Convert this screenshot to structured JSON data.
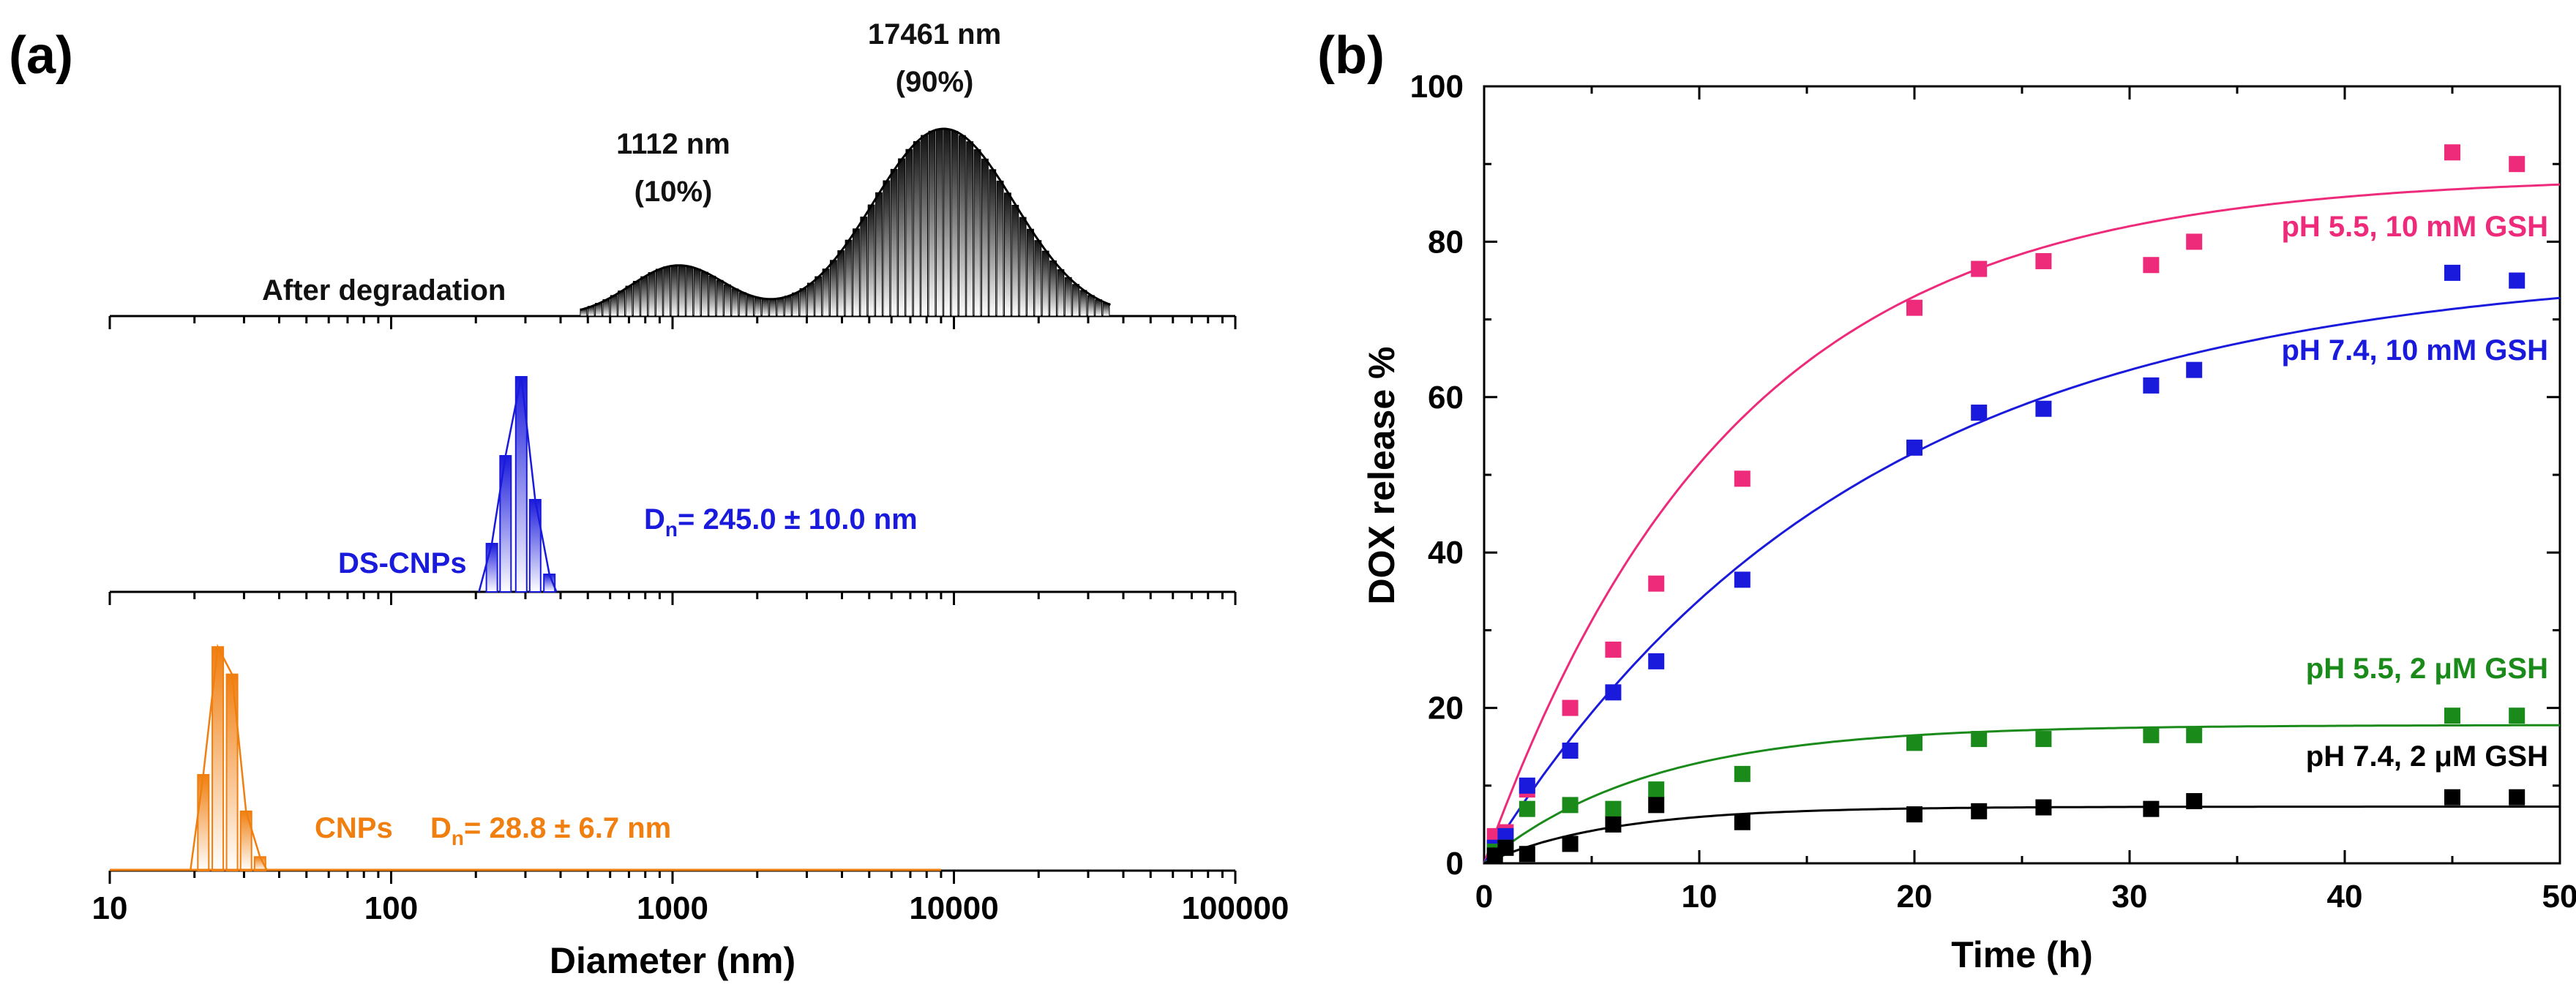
{
  "chart_data": [
    {
      "panel": "(a)",
      "type": "bar",
      "xscale": "log",
      "xlim": [
        10,
        100000
      ],
      "xticks": [
        "10",
        "100",
        "1000",
        "10000",
        "100000"
      ],
      "xlabel": "Diameter (nm)",
      "series": [
        {
          "name": "After degradation",
          "label": "After degradation",
          "color": "#111111",
          "peaks": [
            {
              "label_value": "1112 nm",
              "label_pct": "(10%)",
              "mu": 1050,
              "sigma_log10": 0.17,
              "height": 0.27
            },
            {
              "label_value": "17461 nm",
              "label_pct": "(90%)",
              "mu": 9200,
              "sigma_log10": 0.25,
              "height": 1.0
            }
          ],
          "range": [
            470,
            36000
          ]
        },
        {
          "name": "DS-CNPs",
          "label": "DS-CNPs",
          "stat_prefix": "D",
          "stat_sub": "n",
          "stat_value": "= 245.0 ± 10.0 nm",
          "color": "#1a1adc",
          "bins": [
            {
              "x": 228,
              "v": 0.22
            },
            {
              "x": 255,
              "v": 0.62
            },
            {
              "x": 290,
              "v": 0.98
            },
            {
              "x": 325,
              "v": 0.42
            },
            {
              "x": 365,
              "v": 0.08
            }
          ]
        },
        {
          "name": "CNPs",
          "label": "CNPs",
          "stat_prefix": "D",
          "stat_sub": "n",
          "stat_value": "= 28.8 ± 6.7 nm",
          "color": "#f07f10",
          "bins": [
            {
              "x": 21.5,
              "v": 0.42
            },
            {
              "x": 24.2,
              "v": 0.98
            },
            {
              "x": 27.2,
              "v": 0.86
            },
            {
              "x": 30.5,
              "v": 0.26
            },
            {
              "x": 34.2,
              "v": 0.06
            }
          ]
        }
      ]
    },
    {
      "panel": "(b)",
      "type": "scatter",
      "xlabel": "Time (h)",
      "ylabel": "DOX release %",
      "xlim": [
        0,
        50
      ],
      "ylim": [
        0,
        100
      ],
      "xticks": [
        0,
        10,
        20,
        30,
        40,
        50
      ],
      "yticks": [
        0,
        20,
        40,
        60,
        80,
        100
      ],
      "series": [
        {
          "name": "pH 5.5, 10 mM GSH",
          "color": "#ee2a7b",
          "fit": {
            "A": 88.5,
            "k": 0.087
          },
          "points": [
            [
              0.5,
              3.5
            ],
            [
              1,
              4
            ],
            [
              2,
              9.5
            ],
            [
              4,
              20
            ],
            [
              6,
              27.5
            ],
            [
              8,
              36
            ],
            [
              12,
              49.5
            ],
            [
              20,
              71.5
            ],
            [
              23,
              76.5
            ],
            [
              26,
              77.5
            ],
            [
              31,
              77
            ],
            [
              33,
              80
            ],
            [
              45,
              91.5
            ],
            [
              48,
              90
            ]
          ]
        },
        {
          "name": "pH 7.4, 10 mM GSH",
          "color": "#1a1adc",
          "fit": {
            "A": 77,
            "k": 0.058
          },
          "points": [
            [
              0.5,
              2
            ],
            [
              1,
              3.5
            ],
            [
              2,
              10
            ],
            [
              4,
              14.5
            ],
            [
              6,
              22
            ],
            [
              8,
              26
            ],
            [
              12,
              36.5
            ],
            [
              20,
              53.5
            ],
            [
              23,
              58
            ],
            [
              26,
              58.5
            ],
            [
              31,
              61.5
            ],
            [
              33,
              63.5
            ],
            [
              45,
              76
            ],
            [
              48,
              75
            ]
          ]
        },
        {
          "name": "pH 5.5, 2 μM GSH",
          "color": "#1a8a1a",
          "fit": {
            "A": 17.8,
            "k": 0.13
          },
          "points": [
            [
              0.5,
              1.5
            ],
            [
              1,
              2
            ],
            [
              2,
              7
            ],
            [
              4,
              7.5
            ],
            [
              6,
              7
            ],
            [
              8,
              9.5
            ],
            [
              12,
              11.5
            ],
            [
              20,
              15.5
            ],
            [
              23,
              16
            ],
            [
              26,
              16
            ],
            [
              31,
              16.5
            ],
            [
              33,
              16.5
            ],
            [
              45,
              19
            ],
            [
              48,
              19
            ]
          ]
        },
        {
          "name": "pH 7.4, 2 μM GSH",
          "color": "#000000",
          "fit": {
            "A": 7.3,
            "k": 0.17
          },
          "points": [
            [
              0.5,
              1
            ],
            [
              1,
              2
            ],
            [
              2,
              1.2
            ],
            [
              4,
              2.5
            ],
            [
              6,
              5
            ],
            [
              8,
              7.5
            ],
            [
              12,
              5.3
            ],
            [
              20,
              6.3
            ],
            [
              23,
              6.7
            ],
            [
              26,
              7.2
            ],
            [
              31,
              7
            ],
            [
              33,
              8
            ],
            [
              45,
              8.5
            ],
            [
              48,
              8.5
            ]
          ]
        }
      ]
    }
  ]
}
